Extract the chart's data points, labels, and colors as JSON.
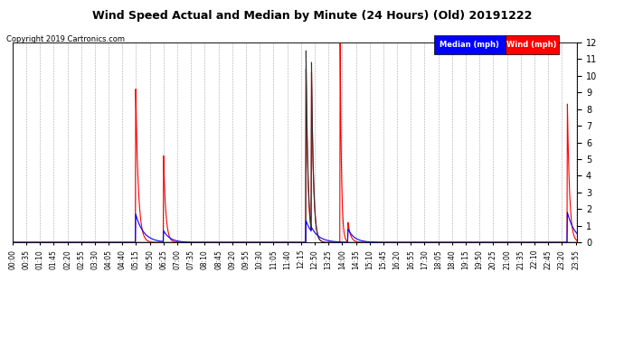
{
  "title": "Wind Speed Actual and Median by Minute (24 Hours) (Old) 20191222",
  "copyright": "Copyright 2019 Cartronics.com",
  "ylim": [
    0.0,
    12.0
  ],
  "yticks": [
    0.0,
    1.0,
    2.0,
    3.0,
    4.0,
    5.0,
    6.0,
    7.0,
    8.0,
    9.0,
    10.0,
    11.0,
    12.0
  ],
  "total_minutes": 1440,
  "background_color": "#ffffff",
  "grid_color": "#aaaaaa",
  "wind_color": "#ff0000",
  "median_color": "#0000ff",
  "dark_spike_color": "#333333",
  "legend_median_bg": "#0000ff",
  "legend_wind_bg": "#ff0000",
  "wind_spikes": [
    {
      "peak_minute": 314,
      "peak_value": 9.2,
      "decay_rate": 0.15
    },
    {
      "peak_minute": 385,
      "peak_value": 5.2,
      "decay_rate": 0.18
    },
    {
      "peak_minute": 748,
      "peak_value": 10.4,
      "decay_rate": 0.2
    },
    {
      "peak_minute": 762,
      "peak_value": 10.2,
      "decay_rate": 0.2
    },
    {
      "peak_minute": 835,
      "peak_value": 12.0,
      "decay_rate": 0.3
    },
    {
      "peak_minute": 855,
      "peak_value": 1.2,
      "decay_rate": 0.15
    },
    {
      "peak_minute": 1414,
      "peak_value": 8.3,
      "decay_rate": 0.18
    }
  ],
  "dark_spikes": [
    {
      "peak_minute": 748,
      "peak_value": 11.5,
      "decay_rate": 0.2
    },
    {
      "peak_minute": 762,
      "peak_value": 10.8,
      "decay_rate": 0.2
    }
  ],
  "median_spikes": [
    {
      "peak_minute": 314,
      "peak_value": 1.7,
      "decay_rate": 0.05
    },
    {
      "peak_minute": 385,
      "peak_value": 0.7,
      "decay_rate": 0.06
    },
    {
      "peak_minute": 748,
      "peak_value": 1.3,
      "decay_rate": 0.05
    },
    {
      "peak_minute": 762,
      "peak_value": 0.9,
      "decay_rate": 0.05
    },
    {
      "peak_minute": 855,
      "peak_value": 0.8,
      "decay_rate": 0.06
    },
    {
      "peak_minute": 1414,
      "peak_value": 1.8,
      "decay_rate": 0.05
    }
  ],
  "xtick_minutes": [
    0,
    35,
    70,
    105,
    140,
    175,
    210,
    245,
    280,
    315,
    350,
    385,
    420,
    455,
    490,
    525,
    560,
    595,
    630,
    665,
    700,
    735,
    770,
    805,
    840,
    875,
    910,
    945,
    980,
    1015,
    1050,
    1085,
    1120,
    1155,
    1190,
    1225,
    1260,
    1295,
    1330,
    1365,
    1400,
    1435
  ],
  "xtick_labels": [
    "00:00",
    "00:35",
    "01:10",
    "01:45",
    "02:20",
    "02:55",
    "03:30",
    "04:05",
    "04:40",
    "05:15",
    "05:50",
    "06:25",
    "07:00",
    "07:35",
    "08:10",
    "08:45",
    "09:20",
    "09:55",
    "10:30",
    "11:05",
    "11:40",
    "12:15",
    "12:50",
    "13:25",
    "14:00",
    "14:35",
    "15:10",
    "15:45",
    "16:20",
    "16:55",
    "17:30",
    "18:05",
    "18:40",
    "19:15",
    "19:50",
    "20:25",
    "21:00",
    "21:35",
    "22:10",
    "22:45",
    "23:20",
    "23:55"
  ]
}
